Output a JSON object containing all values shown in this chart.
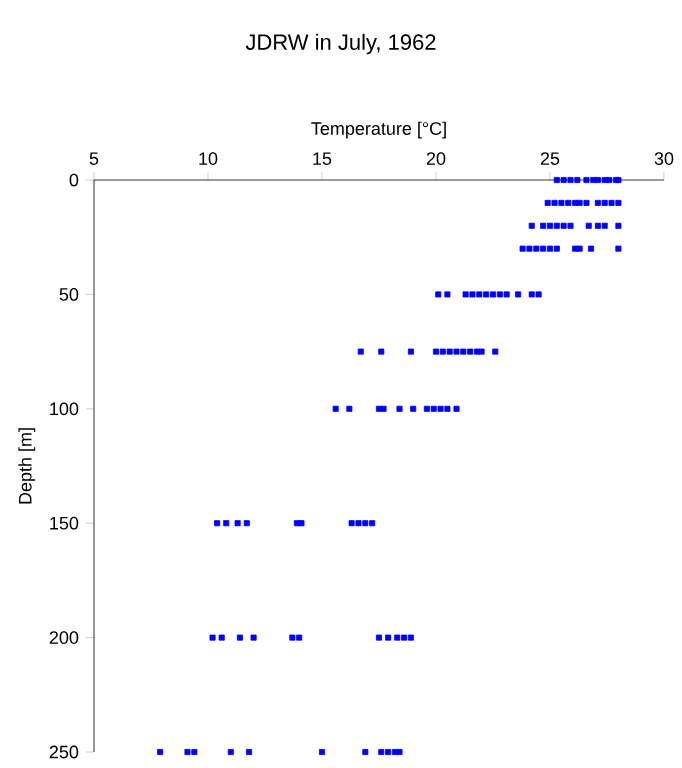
{
  "chart_data": {
    "type": "scatter",
    "title": "JDRW in July, 1962",
    "xlabel": "Temperature [°C]",
    "ylabel": "Depth [m]",
    "xlim": [
      5,
      30
    ],
    "xticks": [
      5,
      10,
      15,
      20,
      25,
      30
    ],
    "ylim": [
      250,
      0
    ],
    "yticks": [
      0,
      50,
      100,
      150,
      200,
      250
    ],
    "marker": "square",
    "grid": false,
    "series": [
      {
        "color": "#0000ff",
        "x": [
          25.3,
          25.6,
          25.9,
          26.2,
          26.6,
          26.9,
          27.1,
          27.4,
          27.6,
          27.9,
          28.0,
          24.9,
          25.2,
          25.5,
          25.8,
          26.1,
          26.3,
          26.6,
          27.1,
          27.4,
          27.7,
          28.0,
          24.2,
          24.7,
          25.0,
          25.3,
          25.6,
          25.9,
          26.7,
          27.1,
          27.4,
          28.0,
          23.8,
          24.1,
          24.4,
          24.7,
          25.0,
          25.3,
          26.1,
          26.3,
          26.8,
          28.0,
          20.1,
          20.5,
          21.3,
          21.6,
          21.9,
          22.2,
          22.5,
          22.8,
          23.1,
          23.6,
          24.2,
          24.5,
          16.7,
          17.6,
          18.9,
          20.0,
          20.3,
          20.6,
          20.9,
          21.2,
          21.5,
          21.8,
          22.0,
          22.6,
          15.6,
          16.2,
          17.5,
          17.7,
          18.4,
          19.0,
          19.6,
          19.9,
          20.2,
          20.5,
          20.9,
          10.4,
          10.8,
          11.3,
          11.7,
          13.9,
          14.1,
          16.3,
          16.6,
          16.9,
          17.2,
          10.2,
          10.6,
          11.4,
          12.0,
          13.7,
          14.0,
          17.5,
          17.9,
          18.3,
          18.6,
          18.9,
          7.9,
          9.1,
          9.4,
          11.0,
          11.8,
          15.0,
          16.9,
          17.6,
          17.9,
          18.2,
          18.4
        ],
        "values": [
          0,
          0,
          0,
          0,
          0,
          0,
          0,
          0,
          0,
          0,
          0,
          10,
          10,
          10,
          10,
          10,
          10,
          10,
          10,
          10,
          10,
          10,
          20,
          20,
          20,
          20,
          20,
          20,
          20,
          20,
          20,
          20,
          30,
          30,
          30,
          30,
          30,
          30,
          30,
          30,
          30,
          30,
          50,
          50,
          50,
          50,
          50,
          50,
          50,
          50,
          50,
          50,
          50,
          50,
          75,
          75,
          75,
          75,
          75,
          75,
          75,
          75,
          75,
          75,
          75,
          75,
          100,
          100,
          100,
          100,
          100,
          100,
          100,
          100,
          100,
          100,
          100,
          150,
          150,
          150,
          150,
          150,
          150,
          150,
          150,
          150,
          150,
          200,
          200,
          200,
          200,
          200,
          200,
          200,
          200,
          200,
          200,
          200,
          250,
          250,
          250,
          250,
          250,
          250,
          250,
          250,
          250,
          250,
          250
        ]
      }
    ]
  }
}
